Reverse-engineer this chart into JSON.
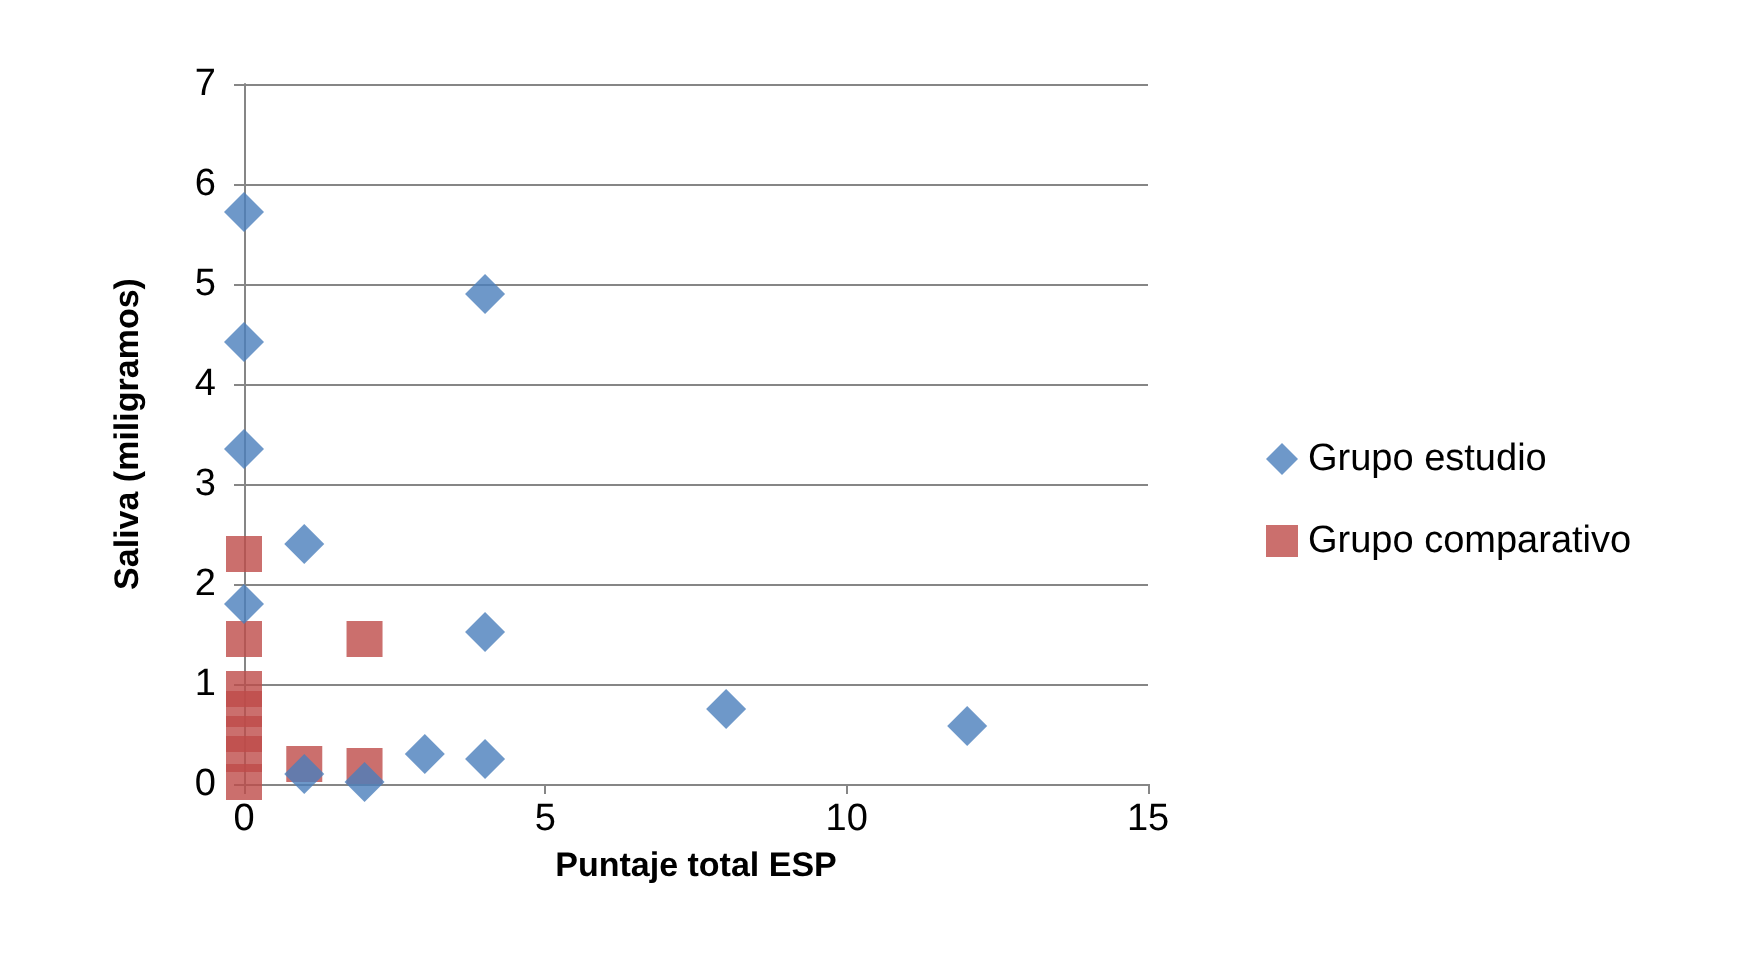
{
  "chart_data": {
    "type": "scatter",
    "xlabel": "Puntaje total ESP",
    "ylabel": "Saliva (miligramos)",
    "xlim": [
      0,
      15
    ],
    "xticks": [
      0,
      5,
      10,
      15
    ],
    "ylim": [
      0,
      7
    ],
    "yticks": [
      0,
      1,
      2,
      3,
      4,
      5,
      6,
      7
    ],
    "grid": "y",
    "legend": "right",
    "series": [
      {
        "name": "Grupo estudio",
        "color": "#4a7ebb",
        "marker": "diamond",
        "x": [
          0,
          0,
          0,
          0,
          1,
          4,
          4,
          8,
          12,
          3,
          4,
          2,
          1
        ],
        "values": [
          5.72,
          4.42,
          3.35,
          1.8,
          2.4,
          4.9,
          1.52,
          0.75,
          0.58,
          0.3,
          0.25,
          0.02,
          0.1
        ]
      },
      {
        "name": "Grupo comparativo",
        "color": "#be4b48",
        "marker": "square",
        "x": [
          0,
          0,
          0,
          0,
          0,
          0,
          0,
          1,
          2,
          2
        ],
        "values": [
          2.3,
          1.45,
          0.95,
          0.75,
          0.5,
          0.3,
          0.02,
          0.2,
          1.45,
          0.18
        ]
      }
    ]
  }
}
